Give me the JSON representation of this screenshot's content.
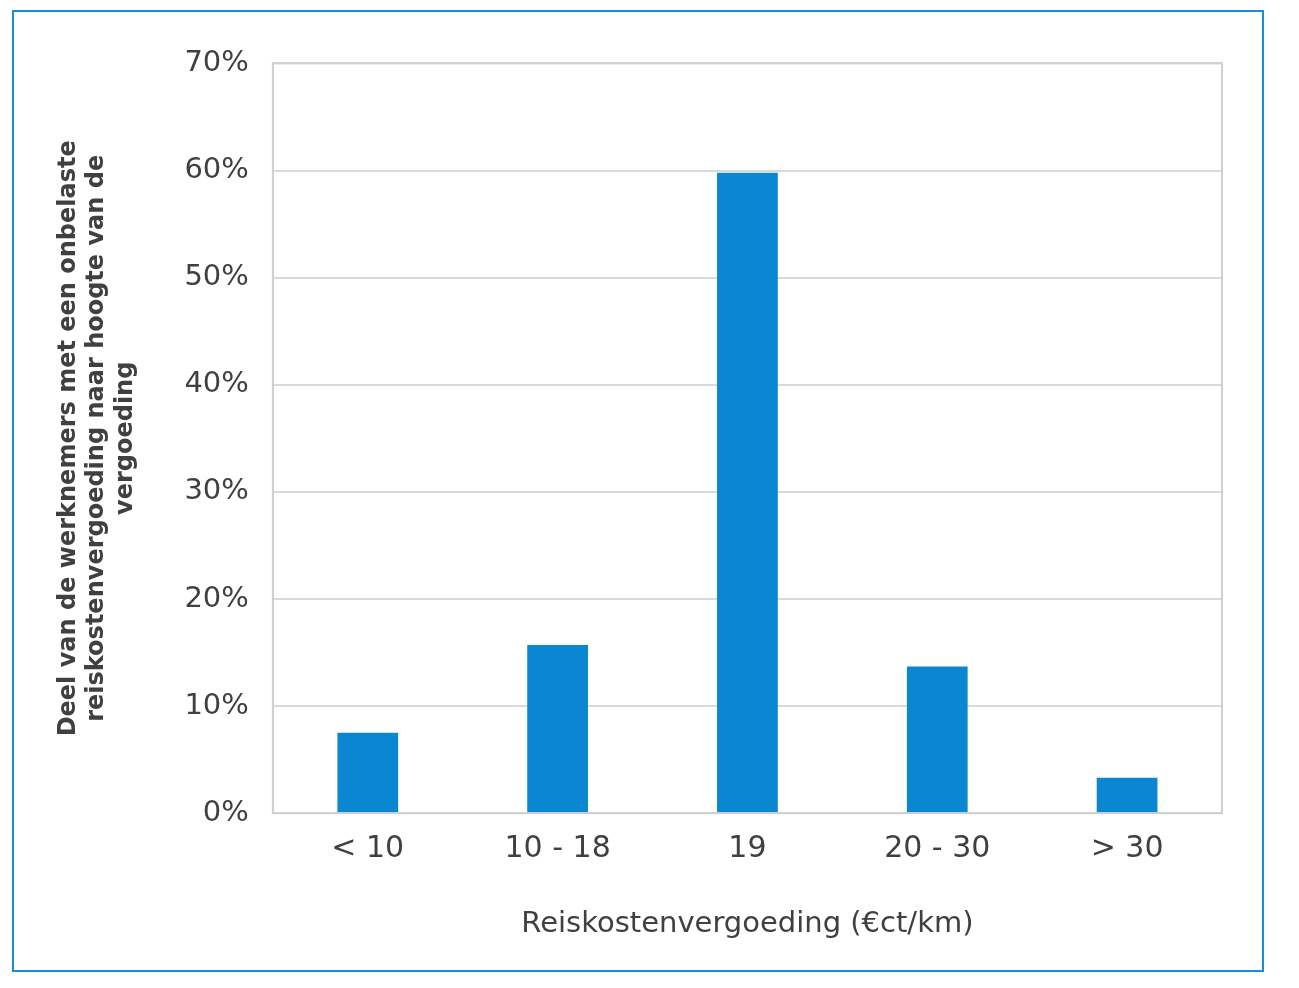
{
  "chart_data": {
    "type": "bar",
    "x_label": "Reiskostenvergoeding (€ct/km)",
    "y_label": "Deel van de werknemers met een onbelaste reiskostenvergoeding naar hoogte van de vergoeding",
    "categories": [
      "< 10",
      "10 - 18",
      "19",
      "20 - 30",
      "> 30"
    ],
    "values": [
      7.5,
      15.7,
      59.8,
      13.7,
      3.3
    ],
    "color": "#0a87d0",
    "ylim": [
      0,
      70
    ],
    "yticks": [
      {
        "value": 0,
        "label": "0%"
      },
      {
        "value": 10,
        "label": "10%"
      },
      {
        "value": 20,
        "label": "20%"
      },
      {
        "value": 30,
        "label": "30%"
      },
      {
        "value": 40,
        "label": "40%"
      },
      {
        "value": 50,
        "label": "50%"
      },
      {
        "value": 60,
        "label": "60%"
      },
      {
        "value": 70,
        "label": "70%"
      }
    ],
    "grid": true
  }
}
